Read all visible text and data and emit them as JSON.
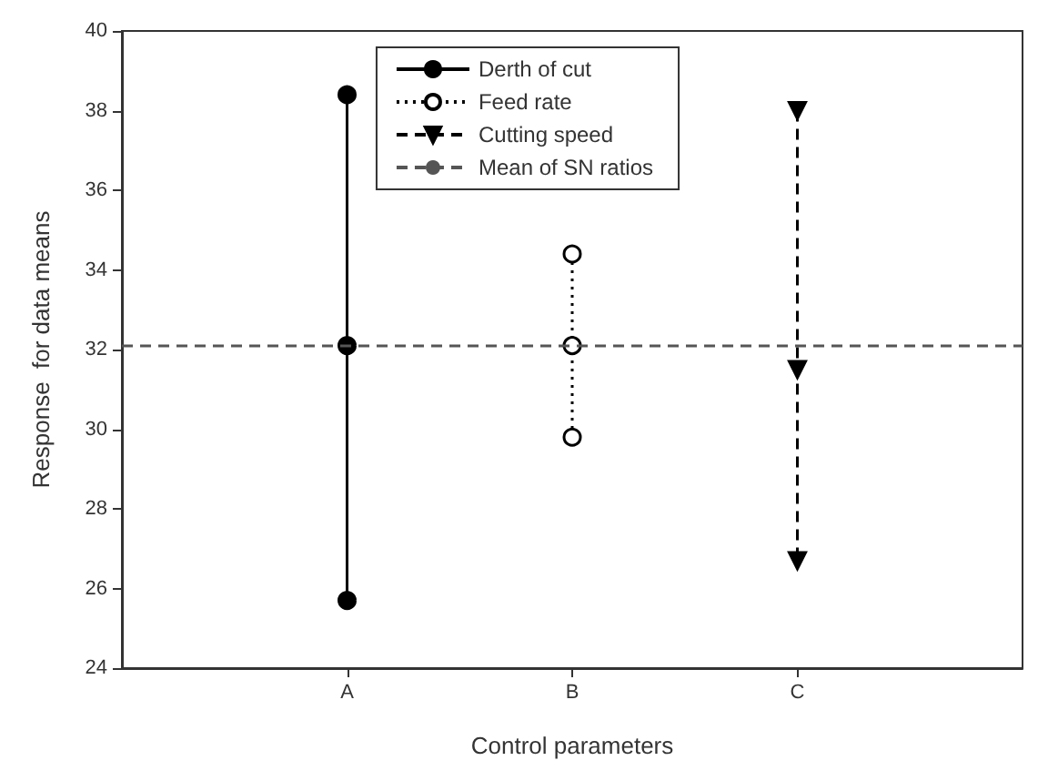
{
  "chart_data": {
    "type": "line",
    "xlabel": "Control parameters",
    "ylabel": "Response  for data means",
    "categories": [
      "A",
      "B",
      "C"
    ],
    "series": [
      {
        "name": "Derth of cut",
        "color": "#000000",
        "x": [
          "A",
          "A",
          "A"
        ],
        "values": [
          38.4,
          32.1,
          25.7
        ],
        "marker": "circle",
        "line_style": "solid"
      },
      {
        "name": "Feed rate",
        "color": "#000000",
        "x": [
          "B",
          "B",
          "B"
        ],
        "values": [
          34.4,
          32.1,
          29.8
        ],
        "marker": "circle-open",
        "line_style": "dotted"
      },
      {
        "name": "Cutting speed",
        "color": "#000000",
        "x": [
          "C",
          "C",
          "C"
        ],
        "values": [
          38.0,
          31.5,
          26.7
        ],
        "marker": "triangle-down",
        "line_style": "dashed"
      }
    ],
    "ref_lines": [
      {
        "axis": "y",
        "value": 32.1,
        "label": "Mean of SN ratios",
        "color": "#555555",
        "line_style": "dashed"
      }
    ],
    "ylim": [
      24,
      40
    ],
    "yticks": [
      24,
      26,
      28,
      30,
      32,
      34,
      36,
      38,
      40
    ],
    "grid": false,
    "legend": "top"
  }
}
